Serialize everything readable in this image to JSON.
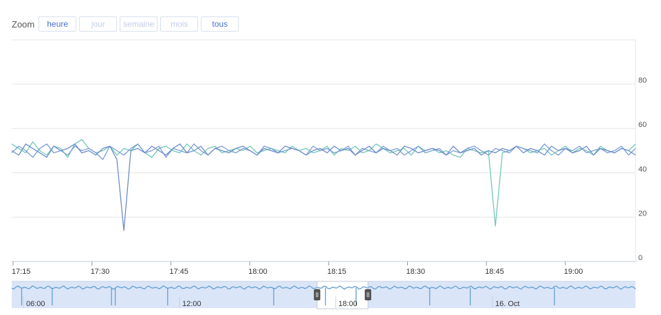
{
  "zoom": {
    "label": "Zoom",
    "buttons": [
      {
        "label": "heure",
        "enabled": true
      },
      {
        "label": "jour",
        "enabled": false
      },
      {
        "label": "semaine",
        "enabled": false
      },
      {
        "label": "mois",
        "enabled": false
      },
      {
        "label": "tous",
        "enabled": true
      }
    ]
  },
  "colors": {
    "series_1": "#6fc7b6",
    "series_2": "#7b9bd8",
    "series_3": "#6a8cc8",
    "navigator_fill": "#dbe5f8",
    "navigator_line": "#5f9fd0"
  },
  "chart_data": {
    "type": "line",
    "title": "",
    "xlabel": "",
    "ylabel": "",
    "x_tick_labels": [
      "17:15",
      "17:30",
      "17:45",
      "18:00",
      "18:15",
      "18:30",
      "18:45",
      "19:00"
    ],
    "y_ticks": [
      0,
      20,
      40,
      60,
      80
    ],
    "ylim": [
      0,
      100
    ],
    "grid": true,
    "legend": "none",
    "series": [
      {
        "color": "#6fc7b6",
        "values": [
          53,
          51,
          49,
          54,
          50,
          48,
          52,
          51,
          47,
          53,
          55,
          51,
          49,
          50,
          52,
          48,
          51,
          50,
          53,
          49,
          47,
          51,
          52,
          50,
          49,
          53,
          50,
          48,
          51,
          52,
          49,
          50,
          51,
          50,
          52,
          49,
          50,
          51,
          50,
          49,
          52,
          50,
          51,
          49,
          50,
          52,
          48,
          51,
          50,
          52,
          49,
          50,
          53,
          51,
          49,
          50,
          51,
          48,
          52,
          50,
          51,
          49,
          50,
          48,
          47,
          51,
          50,
          49,
          50,
          16,
          49,
          50,
          52,
          51,
          49,
          50,
          51,
          48,
          50,
          52,
          49,
          51,
          50,
          48,
          52,
          50,
          49,
          51,
          50,
          53
        ]
      },
      {
        "color": "#7b9bd8",
        "values": [
          49,
          52,
          50,
          47,
          51,
          53,
          49,
          50,
          48,
          52,
          50,
          51,
          49,
          46,
          52,
          50,
          48,
          51,
          53,
          49,
          50,
          52,
          47,
          51,
          50,
          49,
          53,
          50,
          48,
          51,
          52,
          50,
          49,
          51,
          50,
          48,
          52,
          51,
          49,
          50,
          51,
          50,
          48,
          52,
          50,
          51,
          49,
          50,
          52,
          48,
          51,
          50,
          49,
          52,
          50,
          51,
          48,
          50,
          52,
          49,
          50,
          51,
          48,
          50,
          49,
          51,
          52,
          50,
          48,
          51,
          50,
          49,
          52,
          51,
          50,
          49,
          53,
          50,
          48,
          51,
          50,
          52,
          49,
          50,
          51,
          49,
          50,
          52,
          48,
          51
        ]
      },
      {
        "color": "#6a8cc8",
        "values": [
          50,
          48,
          53,
          51,
          49,
          47,
          52,
          50,
          51,
          53,
          49,
          50,
          48,
          51,
          52,
          46,
          14,
          50,
          51,
          49,
          52,
          50,
          48,
          51,
          53,
          49,
          50,
          52,
          48,
          51,
          50,
          49,
          51,
          52,
          50,
          48,
          51,
          50,
          49,
          52,
          51,
          50,
          48,
          50,
          51,
          49,
          52,
          50,
          51,
          48,
          50,
          52,
          49,
          51,
          50,
          48,
          52,
          51,
          49,
          50,
          51,
          50,
          48,
          52,
          49,
          50,
          51,
          48,
          50,
          49,
          51,
          50,
          52,
          49,
          51,
          50,
          48,
          52,
          50,
          51,
          49,
          50,
          52,
          48,
          51,
          50,
          49,
          51,
          50,
          48
        ]
      }
    ],
    "navigator": {
      "x_tick_labels": [
        "06:00",
        "12:00",
        "18:00",
        "16. Oct"
      ],
      "dip_positions": [
        0.016,
        0.065,
        0.16,
        0.166,
        0.25,
        0.42,
        0.503,
        0.552,
        0.67,
        0.735,
        0.87
      ]
    }
  }
}
